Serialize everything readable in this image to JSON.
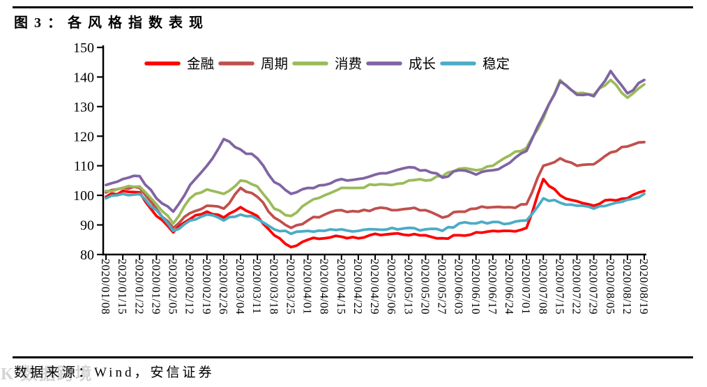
{
  "figure": {
    "title": "图3：各风格指数表现",
    "source_note": "数据来源：Wind，安信证券",
    "watermark": "K 数据跨境"
  },
  "chart_data": {
    "type": "line",
    "title": "图3：各风格指数表现",
    "grid": false,
    "legend_position": "top-inside",
    "ylim": [
      80,
      150
    ],
    "ytick_step": 10,
    "x_labels": [
      "2020/01/08",
      "2020/01/15",
      "2020/01/22",
      "2020/01/29",
      "2020/02/05",
      "2020/02/12",
      "2020/02/19",
      "2020/02/26",
      "2020/03/04",
      "2020/03/11",
      "2020/03/18",
      "2020/03/25",
      "2020/04/01",
      "2020/04/08",
      "2020/04/15",
      "2020/04/22",
      "2020/04/29",
      "2020/05/06",
      "2020/05/13",
      "2020/05/20",
      "2020/05/27",
      "2020/06/03",
      "2020/06/10",
      "2020/06/17",
      "2020/06/24",
      "2020/07/01",
      "2020/07/08",
      "2020/07/15",
      "2020/07/22",
      "2020/07/29",
      "2020/08/05",
      "2020/08/12",
      "2020/08/19"
    ],
    "series": [
      {
        "id": "finance",
        "name": "金融",
        "color": "#FF0000",
        "values": [
          99.5,
          101.5,
          101.0,
          93.0,
          87.5,
          92.0,
          94.5,
          92.5,
          96.0,
          93.0,
          86.5,
          82.5,
          85.0,
          85.5,
          86.0,
          85.5,
          87.0,
          87.0,
          86.5,
          86.5,
          85.5,
          86.5,
          87.5,
          88.0,
          88.0,
          89.0,
          105.5,
          100.0,
          98.0,
          96.5,
          98.5,
          99.0,
          101.5
        ]
      },
      {
        "id": "cycle",
        "name": "周期",
        "color": "#C0504D",
        "values": [
          101.0,
          102.5,
          102.5,
          95.5,
          89.0,
          94.0,
          96.5,
          95.5,
          102.5,
          99.5,
          92.5,
          89.0,
          91.5,
          93.5,
          95.0,
          94.5,
          95.5,
          95.0,
          95.5,
          95.0,
          92.5,
          94.5,
          95.5,
          96.0,
          96.0,
          97.0,
          110.0,
          112.5,
          110.0,
          110.5,
          114.5,
          116.5,
          118.0
        ]
      },
      {
        "id": "consumer",
        "name": "消费",
        "color": "#9BBB59",
        "values": [
          101.5,
          102.5,
          103.0,
          97.0,
          90.5,
          99.0,
          102.0,
          100.5,
          105.0,
          103.0,
          95.5,
          93.0,
          97.5,
          100.0,
          102.5,
          102.5,
          103.5,
          103.5,
          105.0,
          105.0,
          106.5,
          109.0,
          108.5,
          110.0,
          113.5,
          116.0,
          126.0,
          139.0,
          134.5,
          134.0,
          139.0,
          133.0,
          137.5
        ]
      },
      {
        "id": "growth",
        "name": "成长",
        "color": "#8064A2",
        "values": [
          103.5,
          105.5,
          106.5,
          99.0,
          94.5,
          103.5,
          110.0,
          119.0,
          115.5,
          112.5,
          104.5,
          100.5,
          102.5,
          103.5,
          105.5,
          105.5,
          107.0,
          108.0,
          109.5,
          108.5,
          106.0,
          108.5,
          107.0,
          108.5,
          111.0,
          115.0,
          127.0,
          138.5,
          134.0,
          133.5,
          142.0,
          134.5,
          139.0
        ]
      },
      {
        "id": "stable",
        "name": "稳定",
        "color": "#4BACC6",
        "values": [
          99.0,
          100.5,
          100.5,
          95.0,
          88.0,
          91.5,
          93.5,
          91.5,
          93.5,
          92.0,
          88.5,
          87.0,
          88.0,
          88.0,
          88.5,
          88.0,
          88.5,
          89.0,
          89.0,
          88.5,
          88.0,
          90.5,
          90.5,
          91.0,
          90.5,
          91.5,
          99.0,
          97.5,
          96.5,
          95.5,
          97.0,
          98.5,
          100.5
        ]
      }
    ]
  }
}
